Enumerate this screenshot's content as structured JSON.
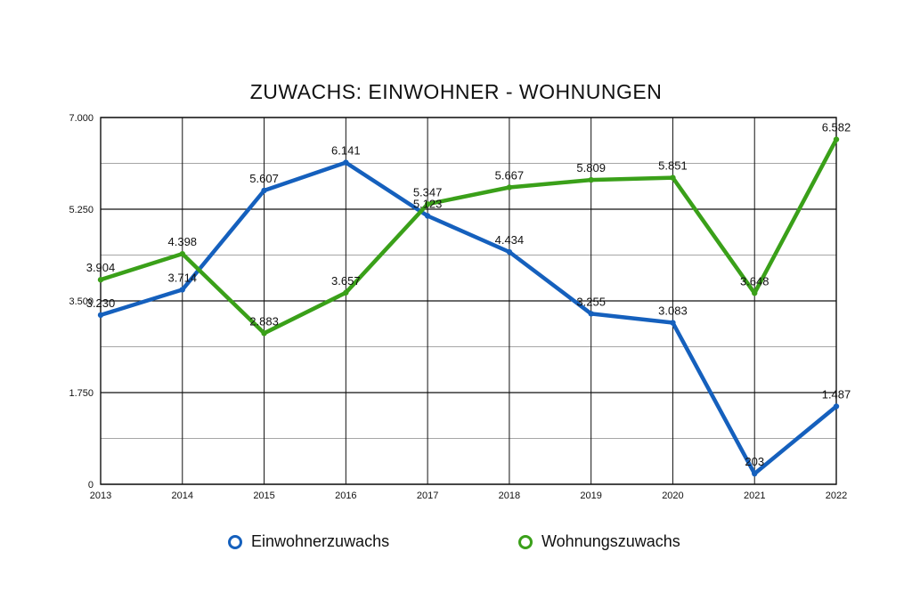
{
  "chart_data": {
    "type": "line",
    "title": "ZUWACHS: EINWOHNER - WOHNUNGEN",
    "xlabel": "",
    "ylabel": "",
    "categories": [
      "2013",
      "2014",
      "2015",
      "2016",
      "2017",
      "2018",
      "2019",
      "2020",
      "2021",
      "2022"
    ],
    "ylim": [
      0,
      7000
    ],
    "yticks": [
      0,
      1750,
      3500,
      5250,
      7000
    ],
    "ytick_labels": [
      "0",
      "1.750",
      "3.500",
      "5.250",
      "7.000"
    ],
    "grid": true,
    "legend_position": "bottom",
    "series": [
      {
        "name": "Einwohnerzuwachs",
        "color": "#1560bd",
        "values": [
          3230,
          3714,
          5607,
          6141,
          5123,
          4434,
          3255,
          3083,
          203,
          1487
        ],
        "labels": [
          "3.230",
          "3.714",
          "5.607",
          "6.141",
          "5.123",
          "4.434",
          "3.255",
          "3.083",
          "203",
          "1.487"
        ]
      },
      {
        "name": "Wohnungszuwachs",
        "color": "#3aa019",
        "values": [
          3904,
          4398,
          2883,
          3657,
          5347,
          5667,
          5809,
          5851,
          3648,
          6582
        ],
        "labels": [
          "3.904",
          "4.398",
          "2.883",
          "3.657",
          "5.347",
          "5.667",
          "5.809",
          "5.851",
          "3.648",
          "6.582"
        ]
      }
    ]
  }
}
